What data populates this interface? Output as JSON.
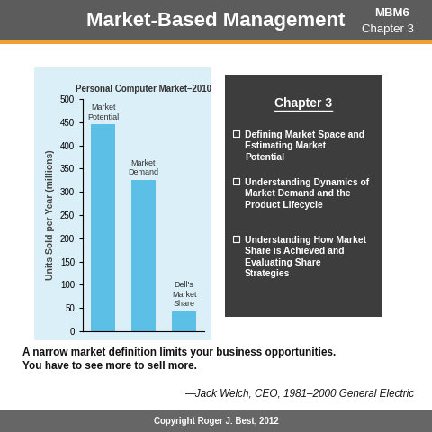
{
  "header": {
    "title": "Market-Based Management",
    "code": "MBM6",
    "chapter": "Chapter 3"
  },
  "chart_data": {
    "type": "bar",
    "title": "Personal Computer Market–2010",
    "y_label": "Units Sold per Year (millions)",
    "categories": [
      "Market Potential",
      "Market Demand",
      "Dell's Market Share"
    ],
    "values": [
      445,
      325,
      43
    ],
    "color": "#5bbfe6",
    "ylim": [
      0,
      500
    ],
    "yticks": [
      0,
      50,
      100,
      150,
      200,
      250,
      300,
      350,
      400,
      450,
      500
    ],
    "grid": false,
    "tick_labels": "y"
  },
  "chapter_box": {
    "title": "Chapter 3",
    "bullets": [
      "Defining Market Space and Estimating Market Potential",
      "Understanding Dynamics of Market Demand and the Product Lifecycle",
      "Understanding How Market Share is Achieved and Evaluating Share Strategies"
    ]
  },
  "quote": {
    "text": "A narrow market definition limits your business opportunities. You have to see more to sell more.",
    "attribution": "—Jack Welch, CEO, 1981–2000 General Electric"
  },
  "footer": {
    "text": "Copyright Roger J. Best, 2012"
  }
}
